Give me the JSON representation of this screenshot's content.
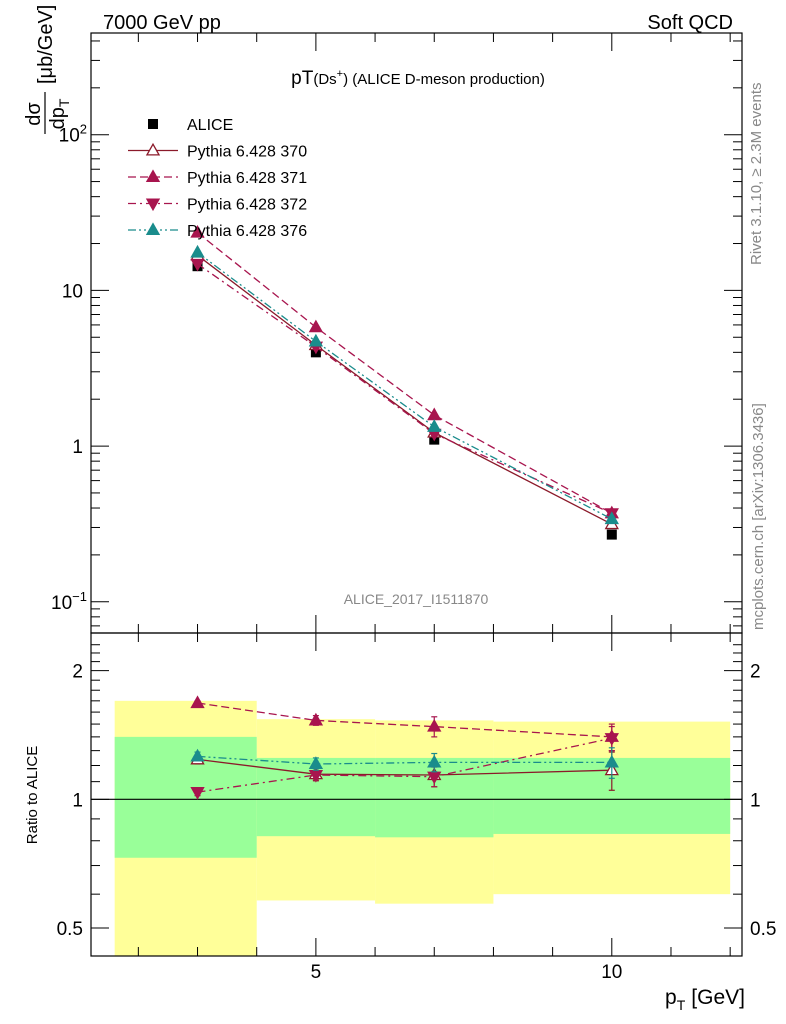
{
  "header": {
    "left": "7000 GeV pp",
    "right": "Soft QCD"
  },
  "side_labels": {
    "top": "Rivet 3.1.10, ≥ 2.3M events",
    "bottom": "mcplots.cern.ch [arXiv:1306.3436]"
  },
  "watermark": "ALICE_2017_I1511870",
  "chart_data": [
    {
      "type": "scatter",
      "title": "pT(Ds⁺) (ALICE D-meson production)",
      "title_main": "pT",
      "title_sub": "(Ds",
      "title_sup": "+",
      "title_rest": ") (ALICE D-meson production)",
      "ylabel_num": "dσ",
      "ylabel_den": "dp",
      "ylabel_den_sub": "T",
      "ylabel_unit": "[μb/GeV]",
      "xlabel": "p",
      "xlabel_sub": "T",
      "xlabel_unit": "[GeV]",
      "yscale": "log",
      "xlim": [
        1.2,
        12.2
      ],
      "ylim": [
        0.063,
        450
      ],
      "yticks": [
        {
          "value": 0.1,
          "base": "10",
          "exp": "−1"
        },
        {
          "value": 1,
          "base": "1",
          "exp": ""
        },
        {
          "value": 10,
          "base": "10",
          "exp": ""
        },
        {
          "value": 100,
          "base": "10",
          "exp": "2"
        }
      ],
      "xticks": [
        {
          "value": 5,
          "label": "5"
        },
        {
          "value": 10,
          "label": "10"
        }
      ],
      "legend_position": "top-left",
      "series": [
        {
          "name": "ALICE",
          "x": [
            3,
            5,
            7,
            10
          ],
          "y": [
            14.3,
            4.0,
            1.1,
            0.27
          ],
          "marker": "square",
          "color": "#000000",
          "line": "none"
        },
        {
          "name": "Pythia 6.428 370",
          "x": [
            3,
            5,
            7,
            10
          ],
          "y": [
            16.8,
            4.45,
            1.22,
            0.315
          ],
          "marker": "triangle-up-open",
          "color": "#8b1a2a",
          "line": "solid"
        },
        {
          "name": "Pythia 6.428 371",
          "x": [
            3,
            5,
            7,
            10
          ],
          "y": [
            23.5,
            5.8,
            1.58,
            0.37
          ],
          "marker": "triangle-up",
          "color": "#a8154e",
          "line": "dashed"
        },
        {
          "name": "Pythia 6.428 372",
          "x": [
            3,
            5,
            7,
            10
          ],
          "y": [
            14.8,
            4.35,
            1.2,
            0.37
          ],
          "marker": "triangle-down",
          "color": "#a8154e",
          "line": "dashdot"
        },
        {
          "name": "Pythia 6.428 376",
          "x": [
            3,
            5,
            7,
            10
          ],
          "y": [
            17.5,
            4.7,
            1.33,
            0.34
          ],
          "marker": "triangle-up",
          "color": "#1a8c8c",
          "line": "dashdotdot"
        }
      ]
    },
    {
      "type": "scatter",
      "title": "",
      "ylabel": "Ratio to ALICE",
      "yscale": "log",
      "xlim": [
        1.2,
        12.2
      ],
      "ylim": [
        0.43,
        2.45
      ],
      "yticks": [
        {
          "value": 0.5,
          "label": "0.5"
        },
        {
          "value": 1,
          "label": "1"
        },
        {
          "value": 2,
          "label": "2"
        }
      ],
      "reference_line": 1,
      "bands": {
        "bins": [
          [
            1.6,
            4
          ],
          [
            4,
            6
          ],
          [
            6,
            8
          ],
          [
            8,
            12
          ]
        ],
        "yellow": [
          [
            0.4,
            1.7
          ],
          [
            0.58,
            1.54
          ],
          [
            0.57,
            1.53
          ],
          [
            0.6,
            1.52
          ]
        ],
        "green": [
          [
            0.73,
            1.4
          ],
          [
            0.82,
            1.25
          ],
          [
            0.815,
            1.25
          ],
          [
            0.83,
            1.25
          ]
        ]
      },
      "series": [
        {
          "name": "Pythia 6.428 370",
          "x": [
            3,
            5,
            7,
            10
          ],
          "y": [
            1.24,
            1.145,
            1.14,
            1.17
          ],
          "err": [
            0.03,
            0.04,
            0.07,
            0.12
          ],
          "marker": "triangle-up-open",
          "color": "#8b1a2a",
          "line": "solid"
        },
        {
          "name": "Pythia 6.428 371",
          "x": [
            3,
            5,
            7,
            10
          ],
          "y": [
            1.68,
            1.53,
            1.48,
            1.4
          ],
          "err": [
            0.02,
            0.04,
            0.08,
            0.1
          ],
          "marker": "triangle-up",
          "color": "#a8154e",
          "line": "dashed"
        },
        {
          "name": "Pythia 6.428 372",
          "x": [
            3,
            5,
            7,
            10
          ],
          "y": [
            1.04,
            1.14,
            1.13,
            1.39
          ],
          "err": [
            0.02,
            0.03,
            0.06,
            0.09
          ],
          "marker": "triangle-down",
          "color": "#a8154e",
          "line": "dashdot"
        },
        {
          "name": "Pythia 6.428 376",
          "x": [
            3,
            5,
            7,
            10
          ],
          "y": [
            1.26,
            1.21,
            1.22,
            1.22
          ],
          "err": [
            0.03,
            0.04,
            0.06,
            0.1
          ],
          "marker": "triangle-up",
          "color": "#1a8c8c",
          "line": "dashdotdot"
        }
      ]
    }
  ],
  "colors": {
    "band_yellow": "#ffff99",
    "band_green": "#99ff99",
    "frame": "#000000"
  }
}
